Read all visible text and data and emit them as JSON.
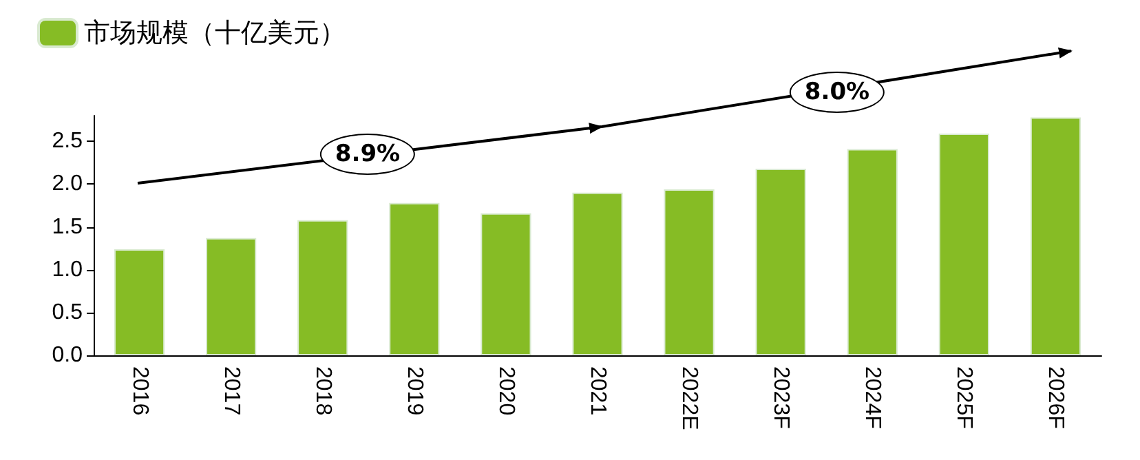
{
  "chart_data": {
    "type": "bar",
    "categories": [
      "2016",
      "2017",
      "2018",
      "2019",
      "2020",
      "2021",
      "2022E",
      "2023F",
      "2024F",
      "2025F",
      "2026F"
    ],
    "series": [
      {
        "name": "市场规模（十亿美元）",
        "color": "#86bc25",
        "values": [
          1.24,
          1.37,
          1.58,
          1.78,
          1.66,
          1.9,
          1.94,
          2.18,
          2.41,
          2.59,
          2.78
        ]
      }
    ],
    "ylim": [
      0,
      2.8
    ],
    "yticks": [
      {
        "value": 0,
        "label": "0.0"
      },
      0.5,
      {
        "value": 1,
        "label": "1.0"
      },
      1.5,
      {
        "value": 2,
        "label": "2.0"
      },
      2.5
    ],
    "grid": false,
    "legend": "top left",
    "annotations": [
      "8.9%",
      "8.0%"
    ]
  }
}
